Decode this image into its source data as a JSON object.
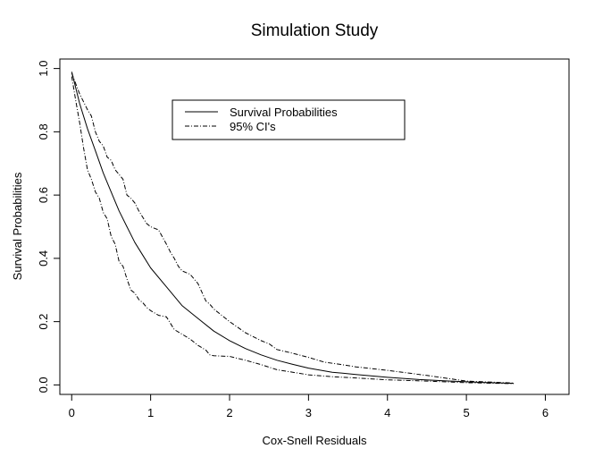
{
  "chart_data": {
    "type": "line",
    "title": "Simulation Study",
    "xlabel": "Cox-Snell Residuals",
    "ylabel": "Survival Probabilities",
    "xlim": [
      -0.15,
      6.3
    ],
    "ylim": [
      -0.03,
      1.03
    ],
    "xticks": [
      0,
      1,
      2,
      3,
      4,
      5,
      6
    ],
    "yticks": [
      0.0,
      0.2,
      0.4,
      0.6,
      0.8,
      1.0
    ],
    "xtick_labels": [
      "0",
      "1",
      "2",
      "3",
      "4",
      "5",
      "6"
    ],
    "ytick_labels": [
      "0.0",
      "0.2",
      "0.4",
      "0.6",
      "0.8",
      "1.0"
    ],
    "grid": false,
    "legend": {
      "position": "top-center",
      "entries": [
        {
          "label": "Survival Probabilities",
          "style": "solid"
        },
        {
          "label": "95% CI's",
          "style": "dotdash"
        }
      ]
    },
    "series": [
      {
        "name": "Survival Probabilities",
        "style": "solid",
        "x": [
          0,
          0.1,
          0.2,
          0.3,
          0.4,
          0.5,
          0.6,
          0.7,
          0.8,
          0.9,
          1.0,
          1.2,
          1.4,
          1.6,
          1.8,
          2.0,
          2.2,
          2.4,
          2.6,
          2.8,
          3.0,
          3.3,
          3.6,
          4.0,
          4.4,
          4.8,
          5.2,
          5.6
        ],
        "y": [
          0.99,
          0.89,
          0.81,
          0.74,
          0.67,
          0.61,
          0.55,
          0.5,
          0.45,
          0.41,
          0.37,
          0.31,
          0.25,
          0.21,
          0.17,
          0.14,
          0.115,
          0.095,
          0.078,
          0.065,
          0.053,
          0.04,
          0.033,
          0.024,
          0.017,
          0.012,
          0.008,
          0.005
        ]
      },
      {
        "name": "95% CI's",
        "style": "dotdash",
        "x": [
          0,
          0.1,
          0.2,
          0.25,
          0.3,
          0.35,
          0.4,
          0.45,
          0.5,
          0.55,
          0.6,
          0.65,
          0.7,
          0.75,
          0.8,
          0.85,
          0.9,
          0.95,
          1.0,
          1.05,
          1.1,
          1.2,
          1.25,
          1.3,
          1.35,
          1.4,
          1.45,
          1.5,
          1.6,
          1.7,
          1.75,
          1.8,
          2.0,
          2.2,
          2.4,
          2.5,
          2.6,
          2.8,
          3.0,
          3.2,
          3.4,
          3.6,
          4.0,
          4.5,
          5.0,
          5.6
        ],
        "y": [
          0.985,
          0.92,
          0.87,
          0.85,
          0.8,
          0.77,
          0.755,
          0.72,
          0.71,
          0.68,
          0.665,
          0.65,
          0.6,
          0.59,
          0.575,
          0.55,
          0.53,
          0.51,
          0.5,
          0.495,
          0.49,
          0.445,
          0.42,
          0.4,
          0.375,
          0.36,
          0.355,
          0.35,
          0.32,
          0.265,
          0.255,
          0.24,
          0.2,
          0.165,
          0.14,
          0.13,
          0.112,
          0.1,
          0.087,
          0.072,
          0.065,
          0.057,
          0.046,
          0.03,
          0.012,
          0.006
        ]
      },
      {
        "name": "95% CI's",
        "style": "dotdash",
        "x": [
          0,
          0.05,
          0.1,
          0.15,
          0.2,
          0.25,
          0.3,
          0.35,
          0.4,
          0.45,
          0.5,
          0.55,
          0.6,
          0.65,
          0.7,
          0.75,
          0.8,
          0.85,
          0.9,
          0.95,
          1.0,
          1.1,
          1.2,
          1.3,
          1.4,
          1.5,
          1.6,
          1.7,
          1.75,
          1.8,
          2.0,
          2.2,
          2.4,
          2.6,
          2.8,
          3.0,
          3.3,
          3.6,
          4.0,
          4.5,
          5.0,
          5.6
        ],
        "y": [
          0.975,
          0.9,
          0.83,
          0.75,
          0.68,
          0.65,
          0.61,
          0.59,
          0.545,
          0.525,
          0.47,
          0.445,
          0.39,
          0.375,
          0.335,
          0.3,
          0.29,
          0.27,
          0.26,
          0.245,
          0.235,
          0.22,
          0.215,
          0.175,
          0.16,
          0.145,
          0.125,
          0.11,
          0.095,
          0.092,
          0.09,
          0.078,
          0.064,
          0.048,
          0.04,
          0.032,
          0.026,
          0.022,
          0.016,
          0.012,
          0.007,
          0.004
        ]
      }
    ]
  }
}
